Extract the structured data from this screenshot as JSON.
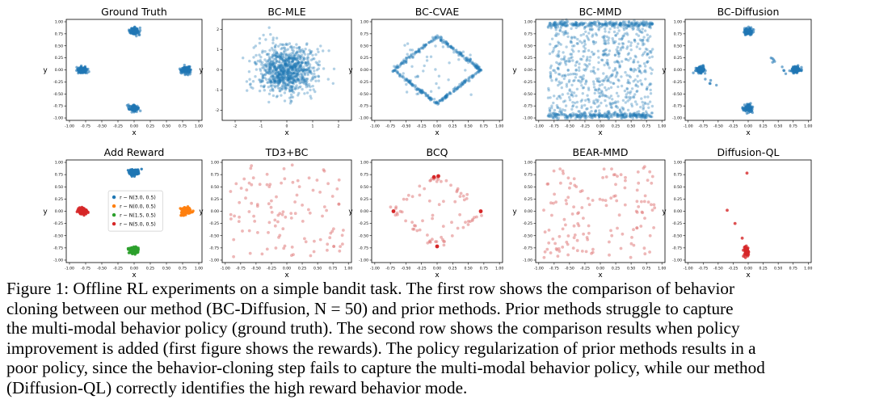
{
  "figure": {
    "colors": {
      "blue": "#1f77b4",
      "orange": "#ff7f0e",
      "green": "#2ca02c",
      "red": "#d62728",
      "pink": "#e07b7c"
    },
    "panels": [
      {
        "title": "Ground Truth",
        "xlabel": "x",
        "ylabel": "y",
        "xticks": [
          "-1.00",
          "-0.75",
          "-0.50",
          "-0.25",
          "0.00",
          "0.25",
          "0.50",
          "0.75",
          "1.00"
        ],
        "yticks": [
          "1.00",
          "0.75",
          "0.50",
          "0.25",
          "0.00",
          "-0.25",
          "-0.50",
          "-0.75",
          "-1.00"
        ],
        "xlim": [
          -1.05,
          1.05
        ],
        "ylim": [
          -1.05,
          1.05
        ],
        "color": "blue",
        "dist": "modes"
      },
      {
        "title": "BC-MLE",
        "xlabel": "x",
        "ylabel": "y",
        "xticks": [
          "-2",
          "-1",
          "0",
          "1",
          "2"
        ],
        "yticks": [
          "2",
          "1",
          "0",
          "-1",
          "-2"
        ],
        "xlim": [
          -2.5,
          2.5
        ],
        "ylim": [
          -2.5,
          2.5
        ],
        "color": "blue",
        "dist": "gaussian"
      },
      {
        "title": "BC-CVAE",
        "xlabel": "x",
        "ylabel": "y",
        "xticks": [
          "-1.00",
          "-0.75",
          "-0.50",
          "-0.25",
          "0.00",
          "0.25",
          "0.50",
          "0.75",
          "1.00"
        ],
        "yticks": [
          "1.00",
          "0.75",
          "0.50",
          "0.25",
          "0.00",
          "-0.25",
          "-0.50",
          "-0.75",
          "-1.00"
        ],
        "xlim": [
          -1.05,
          1.05
        ],
        "ylim": [
          -1.05,
          1.05
        ],
        "color": "blue",
        "dist": "diamond"
      },
      {
        "title": "BC-MMD",
        "xlabel": "x",
        "ylabel": "y",
        "xticks": [
          "-1.00",
          "-0.75",
          "-0.50",
          "-0.25",
          "0.00",
          "0.25",
          "0.50",
          "0.75",
          "1.00"
        ],
        "yticks": [
          "1.00",
          "0.75",
          "0.50",
          "0.25",
          "0.00",
          "-0.25",
          "-0.50",
          "-0.75",
          "-1.00"
        ],
        "xlim": [
          -1.05,
          1.05
        ],
        "ylim": [
          -1.05,
          1.05
        ],
        "color": "blue",
        "dist": "mmd"
      },
      {
        "title": "BC-Diffusion",
        "xlabel": "x",
        "ylabel": "y",
        "xticks": [
          "-1.00",
          "-0.75",
          "-0.50",
          "-0.25",
          "0.00",
          "0.25",
          "0.50",
          "0.75",
          "1.00"
        ],
        "yticks": [
          "1.00",
          "0.75",
          "0.50",
          "0.25",
          "0.00",
          "-0.25",
          "-0.50",
          "-0.75",
          "-1.00"
        ],
        "xlim": [
          -1.05,
          1.05
        ],
        "ylim": [
          -1.05,
          1.05
        ],
        "color": "blue",
        "dist": "modes_bridge"
      },
      {
        "title": "Add Reward",
        "xlabel": "x",
        "ylabel": "y",
        "xticks": [
          "-1.00",
          "-0.75",
          "-0.50",
          "-0.25",
          "0.00",
          "0.25",
          "0.50",
          "0.75",
          "1.00"
        ],
        "yticks": [
          "1.00",
          "0.75",
          "0.50",
          "0.25",
          "0.00",
          "-0.25",
          "-0.50",
          "-0.75",
          "-1.00"
        ],
        "xlim": [
          -1.05,
          1.05
        ],
        "ylim": [
          -1.05,
          1.05
        ],
        "color": "multi",
        "dist": "reward",
        "legend": [
          {
            "color": "blue",
            "label": "r ~ N(3.0, 0.5)"
          },
          {
            "color": "orange",
            "label": "r ~ N(0.0, 0.5)"
          },
          {
            "color": "green",
            "label": "r ~ N(1.5, 0.5)"
          },
          {
            "color": "red",
            "label": "r ~ N(5.0, 0.5)"
          }
        ]
      },
      {
        "title": "TD3+BC",
        "xlabel": "x",
        "ylabel": "y",
        "xticks": [
          "-1.00",
          "-0.75",
          "-0.50",
          "-0.25",
          "0.00",
          "0.25",
          "0.50",
          "0.75",
          "1.00"
        ],
        "yticks": [
          "1.00",
          "0.75",
          "0.50",
          "0.25",
          "0.00",
          "-0.25",
          "-0.50",
          "-0.75",
          "-1.00"
        ],
        "xlim": [
          -1.05,
          1.05
        ],
        "ylim": [
          -1.05,
          1.05
        ],
        "color": "pink",
        "dist": "td3"
      },
      {
        "title": "BCQ",
        "xlabel": "x",
        "ylabel": "y",
        "xticks": [
          "-1.00",
          "-0.75",
          "-0.50",
          "-0.25",
          "0.00",
          "0.25",
          "0.50",
          "0.75",
          "1.00"
        ],
        "yticks": [
          "1.00",
          "0.75",
          "0.50",
          "0.25",
          "0.00",
          "-0.25",
          "-0.50",
          "-0.75",
          "-1.00"
        ],
        "xlim": [
          -1.05,
          1.05
        ],
        "ylim": [
          -1.05,
          1.05
        ],
        "color": "pink",
        "dist": "bcq"
      },
      {
        "title": "BEAR-MMD",
        "xlabel": "x",
        "ylabel": "y",
        "xticks": [
          "-1.00",
          "-0.75",
          "-0.50",
          "-0.25",
          "0.00",
          "0.25",
          "0.50",
          "0.75",
          "1.00"
        ],
        "yticks": [
          "1.00",
          "0.75",
          "0.50",
          "0.25",
          "0.00",
          "-0.25",
          "-0.50",
          "-0.75",
          "-1.00"
        ],
        "xlim": [
          -1.05,
          1.05
        ],
        "ylim": [
          -1.05,
          1.05
        ],
        "color": "pink",
        "dist": "bear"
      },
      {
        "title": "Diffusion-QL",
        "xlabel": "x",
        "ylabel": "y",
        "xticks": [
          "-1.00",
          "-0.75",
          "-0.50",
          "-0.25",
          "0.00",
          "0.25",
          "0.50",
          "0.75",
          "1.00"
        ],
        "yticks": [
          "1.00",
          "0.75",
          "0.50",
          "0.25",
          "0.00",
          "-0.25",
          "-0.50",
          "-0.75",
          "-1.00"
        ],
        "xlim": [
          -1.05,
          1.05
        ],
        "ylim": [
          -1.05,
          1.05
        ],
        "color": "red",
        "dist": "dql"
      }
    ]
  },
  "caption": {
    "lines": [
      "Figure 1: Offline RL experiments on a simple bandit task.  The first row shows the comparison of behavior",
      "cloning between our method (BC-Diffusion, N = 50) and prior methods. Prior methods struggle to capture",
      "the multi-modal behavior policy (ground truth).  The second row shows the comparison results when policy",
      "improvement is added (first figure shows the rewards). The policy regularization of prior methods results in a",
      "poor policy, since the behavior-cloning step fails to capture the multi-modal behavior policy, while our method",
      "(Diffusion-QL) correctly identifies the high reward behavior mode."
    ]
  }
}
